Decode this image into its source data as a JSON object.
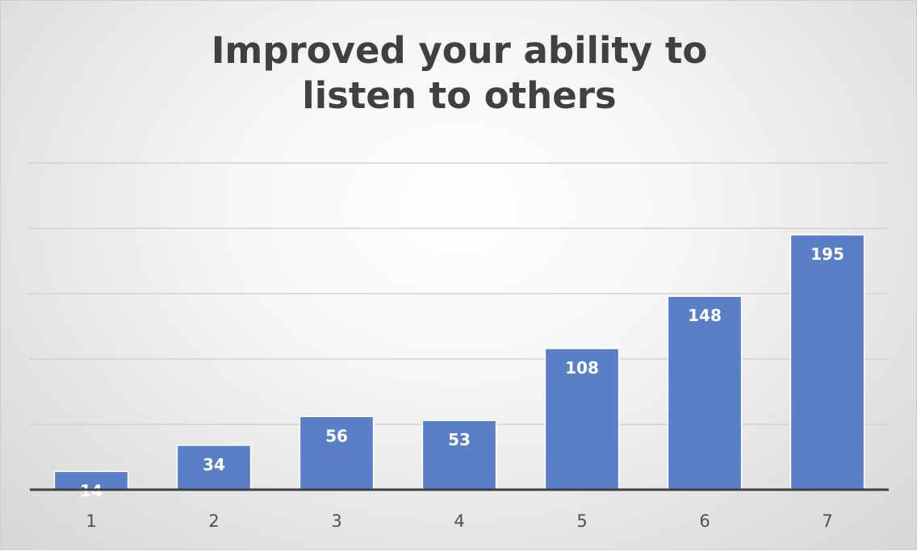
{
  "chart_data": {
    "type": "bar",
    "title": "Improved your ability to listen to others",
    "categories": [
      "1",
      "2",
      "3",
      "4",
      "5",
      "6",
      "7"
    ],
    "values": [
      14,
      34,
      56,
      53,
      108,
      148,
      195
    ],
    "ylim": [
      0,
      250
    ],
    "grid": true,
    "data_labels": true,
    "bar_color": "#5b7fc7"
  }
}
